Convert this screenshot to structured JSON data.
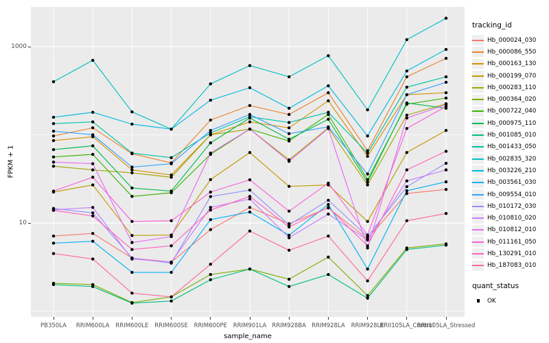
{
  "chart_data": {
    "type": "line",
    "title": "",
    "xlabel": "sample_name",
    "ylabel": "FPKM + 1",
    "y_scale": "log10",
    "y_tick_labels": [
      "1000",
      "10"
    ],
    "y_breaks": [
      1000,
      10
    ],
    "y_minor_breaks": [
      100,
      1
    ],
    "ylim_log": [
      0.9,
      2800
    ],
    "grid": true,
    "legend_position": "right",
    "legend_title": "tracking_id",
    "point_legend": {
      "title": "quant_status",
      "entries": [
        {
          "label": "OK",
          "color": "#000000"
        }
      ]
    },
    "point_color": "#000000",
    "categories": [
      "PB350LA",
      "RRIM600LA",
      "RRIM600LE",
      "RRIM600SE",
      "RRIM600PE",
      "RRIM901LA",
      "RRIM928BA",
      "RRIM928LA",
      "RRIM928LE",
      "RRII105LA_Control",
      "RRII105LA_Stressed"
    ],
    "series": [
      {
        "name": "Hb_000024_030",
        "color": "#F8766D",
        "values": [
          7.1,
          7.6,
          4.0,
          3.6,
          8.4,
          15,
          9.8,
          14.8,
          6.6,
          21.6,
          24
        ]
      },
      {
        "name": "Hb_000086_550",
        "color": "#EA8331",
        "values": [
          97,
          120,
          61,
          48,
          147,
          215,
          170,
          300,
          66,
          455,
          737
        ]
      },
      {
        "name": "Hb_000163_130",
        "color": "#D89000",
        "values": [
          86,
          95,
          40,
          35,
          100,
          140,
          120,
          243,
          57,
          285,
          300
        ]
      },
      {
        "name": "Hb_000199_070",
        "color": "#C09B00",
        "values": [
          22.4,
          27,
          7.2,
          7.3,
          31,
          63,
          26,
          27,
          10.4,
          63,
          112
        ]
      },
      {
        "name": "Hb_000283_110",
        "color": "#A3A500",
        "values": [
          44,
          40,
          37,
          33,
          100,
          116,
          52,
          120,
          27,
          167,
          225
        ]
      },
      {
        "name": "Hb_000364_020",
        "color": "#7CAE00",
        "values": [
          2.07,
          2.0,
          1.25,
          1.45,
          2.6,
          3.0,
          2.3,
          4.1,
          1.5,
          5.2,
          5.8
        ]
      },
      {
        "name": "Hb_000722_040",
        "color": "#39B600",
        "values": [
          56,
          60,
          20,
          22,
          60,
          116,
          85,
          170,
          31,
          222,
          261
        ]
      },
      {
        "name": "Hb_000975_110",
        "color": "#00BB4E",
        "values": [
          68,
          75,
          24.9,
          23,
          81,
          155,
          89,
          150,
          29,
          230,
          200
        ]
      },
      {
        "name": "Hb_001085_010",
        "color": "#00BF7D",
        "values": [
          2.0,
          1.9,
          1.23,
          1.3,
          2.27,
          3.0,
          1.9,
          2.6,
          1.4,
          5.0,
          5.6
        ]
      },
      {
        "name": "Hb_001433_050",
        "color": "#00C1A3",
        "values": [
          134,
          140,
          62,
          55,
          105,
          160,
          138,
          180,
          62,
          347,
          455
        ]
      },
      {
        "name": "Hb_002835_320",
        "color": "#00BFC4",
        "values": [
          400,
          700,
          182,
          116,
          378,
          610,
          455,
          790,
          192,
          1200,
          2100
        ]
      },
      {
        "name": "Hb_003226_210",
        "color": "#00BAE0",
        "values": [
          158,
          180,
          132,
          116,
          247,
          342,
          200,
          360,
          97,
          530,
          930
        ]
      },
      {
        "name": "Hb_003561_030",
        "color": "#00B0F6",
        "values": [
          5.9,
          6.2,
          2.75,
          2.75,
          10.9,
          13.3,
          7.25,
          16.2,
          3.0,
          23.2,
          29.3
        ]
      },
      {
        "name": "Hb_009554_010",
        "color": "#35A2FF",
        "values": [
          110,
          100,
          43,
          47,
          112,
          170,
          103,
          123,
          36,
          285,
          394
        ]
      },
      {
        "name": "Hb_010172_030",
        "color": "#9590FF",
        "values": [
          14.6,
          13,
          4.0,
          3.5,
          19.9,
          23.6,
          9.5,
          18.1,
          7.0,
          25.8,
          47.5
        ]
      },
      {
        "name": "Hb_010810_020",
        "color": "#C77CFF",
        "values": [
          14.1,
          15,
          3.9,
          3.6,
          15,
          18.7,
          6.8,
          12.6,
          6.4,
          30,
          40
        ]
      },
      {
        "name": "Hb_010812_010",
        "color": "#E76BF3",
        "values": [
          49,
          47,
          6.0,
          7.0,
          62,
          116,
          50,
          118,
          5.2,
          155,
          220
        ]
      },
      {
        "name": "Hb_011161_050",
        "color": "#FA62DB",
        "values": [
          23,
          33,
          10.4,
          10.6,
          22.4,
          30.9,
          13.6,
          28.3,
          7.3,
          118,
          210
        ]
      },
      {
        "name": "Hb_130291_010",
        "color": "#FF62BC",
        "values": [
          13.9,
          12,
          5.0,
          5.5,
          14,
          20,
          9.0,
          15,
          5.5,
          40,
          65
        ]
      },
      {
        "name": "Hb_187083_010",
        "color": "#FF6A98",
        "values": [
          4.5,
          3.9,
          1.6,
          1.45,
          3.4,
          8.1,
          4.9,
          7.1,
          2.2,
          10.6,
          12.8
        ]
      }
    ]
  },
  "colors": {
    "panel_bg": "#EBEBEB",
    "grid": "#FFFFFF",
    "tick_text": "#4D4D4D",
    "axis_title_text": "#000000",
    "legend_key_bg": "#EFEFEF",
    "point": "#000000"
  }
}
